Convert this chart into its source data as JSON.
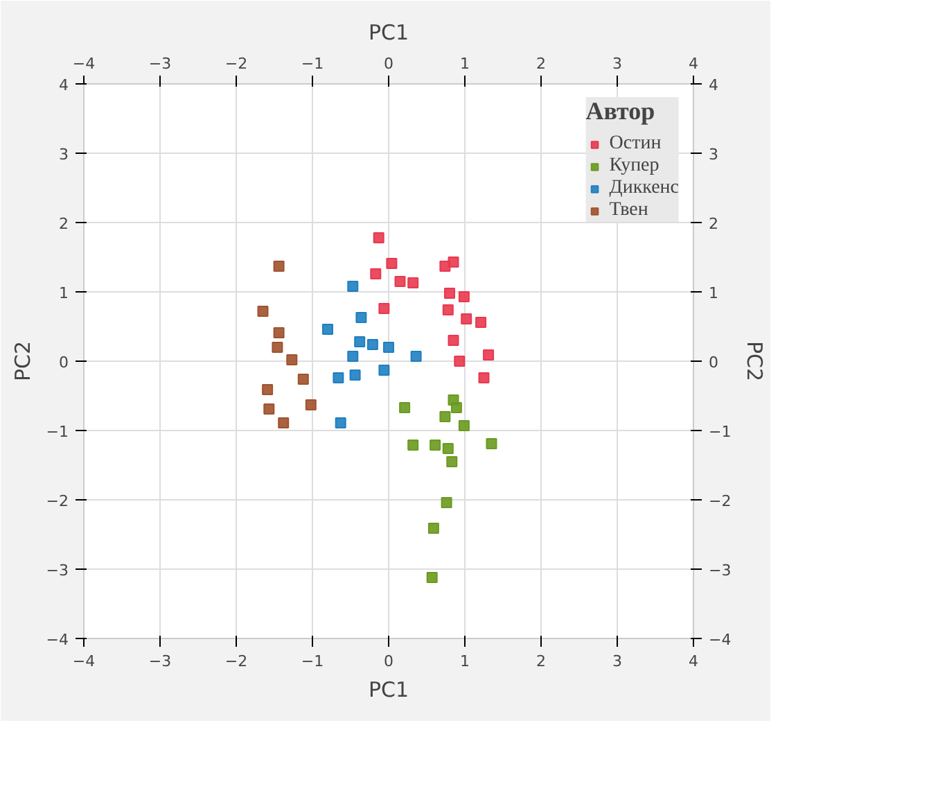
{
  "chart_data": {
    "type": "scatter",
    "xlabel": "PC1",
    "x2label": "PC1",
    "ylabel": "PC2",
    "y2label": "PC2",
    "legend_title": "Автор",
    "xlim": [
      -4,
      4
    ],
    "xticks": [
      -4,
      -3,
      -2,
      -1,
      0,
      1,
      2,
      3,
      4
    ],
    "x2lim": [
      -4,
      4
    ],
    "x2ticks": [
      -4,
      -3,
      -2,
      -1,
      0,
      1,
      2,
      3,
      4
    ],
    "ylim": [
      -4,
      4
    ],
    "yticks": [
      -4,
      -3,
      -2,
      -1,
      0,
      1,
      2,
      3,
      4
    ],
    "y2lim": [
      -4,
      4
    ],
    "y2ticks": [
      -4,
      -3,
      -2,
      -1,
      0,
      1,
      2,
      3,
      4
    ],
    "grid": true,
    "legend": "top right",
    "marker": "square",
    "series": [
      {
        "name": "Остин",
        "color": "#e8384f",
        "x": [
          -0.13,
          0.04,
          -0.17,
          0.15,
          0.32,
          0.74,
          0.85,
          0.8,
          0.99,
          -0.06,
          0.78,
          1.02,
          1.21,
          0.85,
          0.93,
          1.31,
          1.25
        ],
        "values": [
          1.78,
          1.41,
          1.26,
          1.15,
          1.13,
          1.37,
          1.43,
          0.98,
          0.93,
          0.76,
          0.74,
          0.61,
          0.56,
          0.3,
          0.0,
          0.09,
          -0.24
        ]
      },
      {
        "name": "Купер",
        "color": "#6a9a1f",
        "x": [
          0.85,
          0.89,
          0.74,
          0.99,
          0.32,
          0.61,
          0.78,
          1.35,
          0.83,
          0.76,
          0.59,
          0.57,
          0.21
        ],
        "values": [
          -0.56,
          -0.67,
          -0.8,
          -0.93,
          -1.21,
          -1.21,
          -1.26,
          -1.19,
          -1.45,
          -2.04,
          -2.41,
          -3.12,
          -0.67
        ]
      },
      {
        "name": "Диккенс",
        "color": "#1f7fc0",
        "x": [
          -0.47,
          -0.36,
          -0.8,
          -0.38,
          -0.21,
          0.0,
          -0.47,
          -0.66,
          -0.44,
          -0.63,
          -0.06,
          0.36
        ],
        "values": [
          1.08,
          0.63,
          0.46,
          0.28,
          0.24,
          0.2,
          0.07,
          -0.24,
          -0.2,
          -0.89,
          -0.13,
          0.07
        ]
      },
      {
        "name": "Твен",
        "color": "#a0522d",
        "x": [
          -1.44,
          -1.65,
          -1.44,
          -1.46,
          -1.12,
          -1.59,
          -1.02,
          -1.57,
          -1.38,
          -1.27
        ],
        "values": [
          1.37,
          0.72,
          0.41,
          0.2,
          -0.26,
          -0.41,
          -0.63,
          -0.69,
          -0.89,
          0.02
        ]
      }
    ]
  }
}
